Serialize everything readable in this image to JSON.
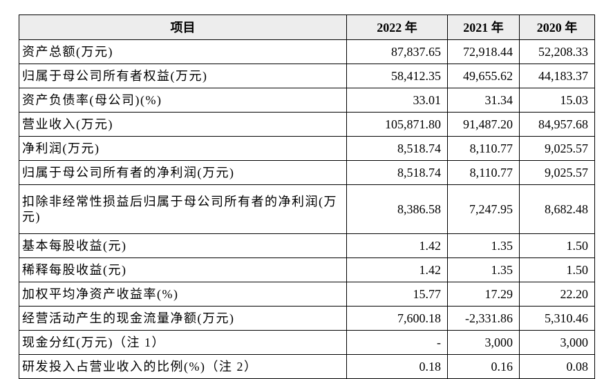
{
  "table": {
    "headers": [
      "项目",
      "2022 年",
      "2021 年",
      "2020 年"
    ],
    "rows": [
      {
        "label": "资产总额(万元)",
        "values": [
          "87,837.65",
          "72,918.44",
          "52,208.33"
        ]
      },
      {
        "label": "归属于母公司所有者权益(万元)",
        "values": [
          "58,412.35",
          "49,655.62",
          "44,183.37"
        ]
      },
      {
        "label": "资产负债率(母公司)(%)",
        "values": [
          "33.01",
          "31.34",
          "15.03"
        ]
      },
      {
        "label": "营业收入(万元)",
        "values": [
          "105,871.80",
          "91,487.20",
          "84,957.68"
        ]
      },
      {
        "label": "净利润(万元)",
        "values": [
          "8,518.74",
          "8,110.77",
          "9,025.57"
        ]
      },
      {
        "label": "归属于母公司所有者的净利润(万元)",
        "values": [
          "8,518.74",
          "8,110.77",
          "9,025.57"
        ]
      },
      {
        "label": "扣除非经常性损益后归属于母公司所有者的净利润(万元)",
        "values": [
          "8,386.58",
          "7,247.95",
          "8,682.48"
        ]
      },
      {
        "label": "基本每股收益(元)",
        "values": [
          "1.42",
          "1.35",
          "1.50"
        ]
      },
      {
        "label": "稀释每股收益(元)",
        "values": [
          "1.42",
          "1.35",
          "1.50"
        ]
      },
      {
        "label": "加权平均净资产收益率(%)",
        "values": [
          "15.77",
          "17.29",
          "22.20"
        ]
      },
      {
        "label": "经营活动产生的现金流量净额(万元)",
        "values": [
          "7,600.18",
          "-2,331.86",
          "5,310.46"
        ]
      },
      {
        "label": "现金分红(万元)（注 1）",
        "values": [
          "-",
          "3,000",
          "3,000"
        ]
      },
      {
        "label": "研发投入占营业收入的比例(%)（注 2）",
        "values": [
          "0.18",
          "0.16",
          "0.08"
        ]
      }
    ]
  }
}
